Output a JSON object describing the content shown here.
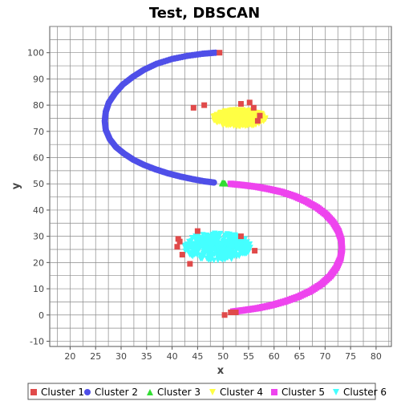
{
  "chart_data": {
    "type": "scatter",
    "title": "Test, DBSCAN",
    "xlabel": "x",
    "ylabel": "y",
    "xlim": [
      16,
      83
    ],
    "ylim": [
      -12,
      110
    ],
    "xticks": [
      20,
      25,
      30,
      35,
      40,
      45,
      50,
      55,
      60,
      65,
      70,
      75,
      80
    ],
    "yticks": [
      -10,
      0,
      10,
      20,
      30,
      40,
      50,
      60,
      70,
      80,
      90,
      100
    ],
    "grid": true,
    "legend_position": "bottom",
    "series": [
      {
        "name": "Cluster 1",
        "marker": "square",
        "color": "#e04a4a",
        "points": [
          [
            49.3,
            100
          ],
          [
            44.2,
            79
          ],
          [
            46.3,
            80
          ],
          [
            53.5,
            80.5
          ],
          [
            55.2,
            81
          ],
          [
            56,
            79
          ],
          [
            57.2,
            76
          ],
          [
            56.8,
            74
          ],
          [
            45,
            32
          ],
          [
            41.2,
            29
          ],
          [
            41.5,
            28
          ],
          [
            41,
            26
          ],
          [
            42,
            23
          ],
          [
            43.5,
            19.5
          ],
          [
            53.5,
            30
          ],
          [
            56.2,
            24.5
          ],
          [
            50.3,
            0
          ],
          [
            51.5,
            1
          ],
          [
            52.5,
            1
          ]
        ]
      },
      {
        "name": "Cluster 2",
        "marker": "circle",
        "color": "#4f4fe8",
        "points": [
          [
            48.5,
            100
          ],
          [
            46,
            99.6
          ],
          [
            43,
            98.8
          ],
          [
            40,
            97.6
          ],
          [
            37,
            95.8
          ],
          [
            34.5,
            93.5
          ],
          [
            32.3,
            90.8
          ],
          [
            30.3,
            87.8
          ],
          [
            28.8,
            84.5
          ],
          [
            27.6,
            81
          ],
          [
            27,
            77.5
          ],
          [
            26.8,
            74
          ],
          [
            27,
            70.5
          ],
          [
            27.8,
            67
          ],
          [
            29,
            64
          ],
          [
            30.6,
            61.5
          ],
          [
            32.4,
            59.2
          ],
          [
            34.5,
            57.2
          ],
          [
            36.8,
            55.5
          ],
          [
            39.2,
            54
          ],
          [
            41.6,
            52.8
          ],
          [
            44,
            51.8
          ],
          [
            46.2,
            51
          ],
          [
            48.2,
            50.5
          ]
        ]
      },
      {
        "name": "Cluster 3",
        "marker": "triangle",
        "color": "#33dd33",
        "points": [
          [
            49.8,
            50.3
          ],
          [
            50.4,
            50.2
          ]
        ]
      },
      {
        "name": "Cluster 4",
        "marker": "triangle-down",
        "color": "#ffff44",
        "points": []
      },
      {
        "name": "Cluster 5",
        "marker": "square",
        "color": "#ee44ee",
        "points": [
          [
            51.5,
            50
          ],
          [
            54,
            49.5
          ],
          [
            56.5,
            48.9
          ],
          [
            59,
            48
          ],
          [
            61.5,
            46.9
          ],
          [
            64,
            45.3
          ],
          [
            66.3,
            43.3
          ],
          [
            68.4,
            41
          ],
          [
            70.2,
            38.3
          ],
          [
            71.6,
            35.3
          ],
          [
            72.6,
            32
          ],
          [
            73.2,
            28.5
          ],
          [
            73.3,
            25
          ],
          [
            73,
            21.5
          ],
          [
            72.2,
            18
          ],
          [
            71,
            14.8
          ],
          [
            69.3,
            11.8
          ],
          [
            67.2,
            9.2
          ],
          [
            64.8,
            7
          ],
          [
            62.2,
            5.2
          ],
          [
            59.5,
            3.7
          ],
          [
            56.8,
            2.6
          ],
          [
            54,
            1.8
          ],
          [
            52,
            1.3
          ]
        ]
      },
      {
        "name": "Cluster 6",
        "marker": "triangle-down",
        "color": "#44ffff",
        "points": []
      }
    ],
    "blobs": [
      {
        "series": "Cluster 4",
        "center": [
          53.2,
          75
        ],
        "spread": [
          5.2,
          3.3
        ]
      },
      {
        "series": "Cluster 6",
        "center": [
          48.8,
          26
        ],
        "spread": [
          6.8,
          5.3
        ]
      }
    ]
  }
}
